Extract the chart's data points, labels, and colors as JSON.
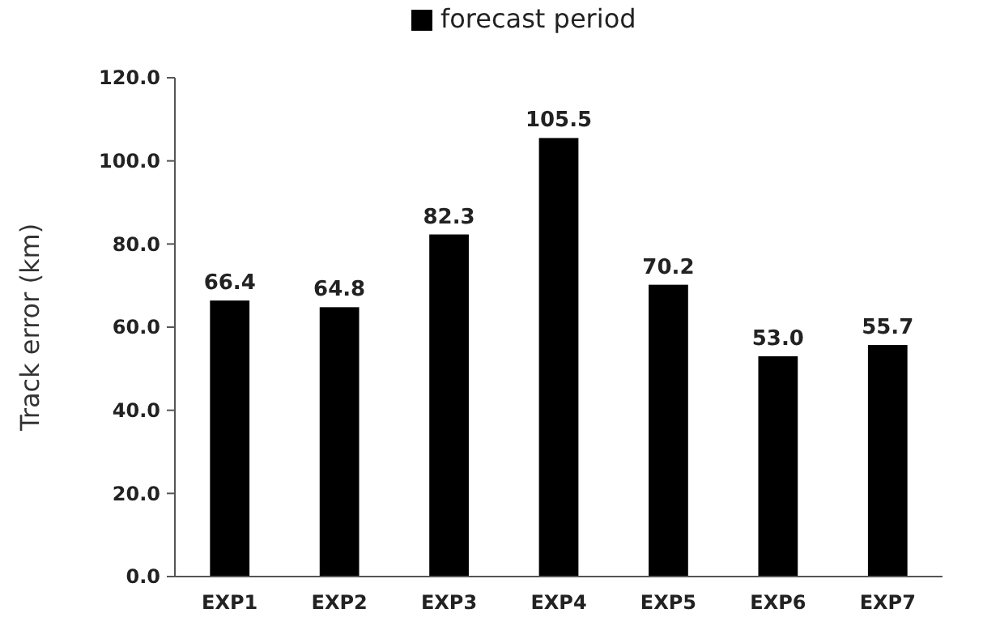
{
  "chart_data": {
    "type": "bar",
    "ylabel": "Track error (km)",
    "categories": [
      "EXP1",
      "EXP2",
      "EXP3",
      "EXP4",
      "EXP5",
      "EXP6",
      "EXP7"
    ],
    "series": [
      {
        "name": "forecast period",
        "color": "#000000",
        "values": [
          66.4,
          64.8,
          82.3,
          105.5,
          70.2,
          53.0,
          55.7
        ]
      }
    ],
    "value_labels": [
      "66.4",
      "64.8",
      "82.3",
      "105.5",
      "70.2",
      "53.0",
      "55.7"
    ],
    "ylim": [
      0,
      120
    ],
    "yticks": [
      {
        "value": 0,
        "label": "0.0"
      },
      {
        "value": 20,
        "label": "20.0"
      },
      {
        "value": 40,
        "label": "40.0"
      },
      {
        "value": 60,
        "label": "60.0"
      },
      {
        "value": 80,
        "label": "80.0"
      },
      {
        "value": 100,
        "label": "100.0"
      },
      {
        "value": 120,
        "label": "120.0"
      }
    ],
    "legend": "top",
    "grid": false
  }
}
